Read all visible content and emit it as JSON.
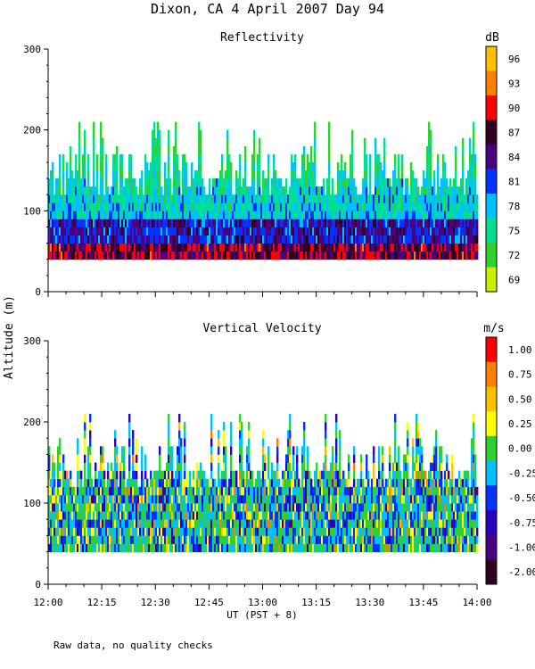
{
  "title": "Dixon, CA   4 April 2007   Day  94",
  "ylabel": "Altitude (m)",
  "xlabel": "UT  (PST + 8)",
  "footnote": "Raw data, no quality checks",
  "x_ticks": [
    "12:00",
    "12:15",
    "12:30",
    "12:45",
    "13:00",
    "13:15",
    "13:30",
    "13:45",
    "14:00"
  ],
  "x_range_minutes": [
    0,
    120
  ],
  "chart_data": [
    {
      "type": "heatmap",
      "title": "Reflectivity",
      "unit": "dB",
      "ylim": [
        0,
        300
      ],
      "y_ticks": [
        "0",
        "100",
        "200",
        "300"
      ],
      "data_altitude_range_m": [
        40,
        220
      ],
      "colorbar": {
        "labels": [
          "96",
          "93",
          "90",
          "87",
          "84",
          "81",
          "78",
          "75",
          "72",
          "69"
        ],
        "colors": [
          "#ffc000",
          "#ff8000",
          "#ff0000",
          "#300020",
          "#4b0082",
          "#0033ff",
          "#00c0ff",
          "#00e090",
          "#30d030",
          "#c8f000"
        ]
      }
    },
    {
      "type": "heatmap",
      "title": "Vertical Velocity",
      "unit": "m/s",
      "ylim": [
        0,
        300
      ],
      "y_ticks": [
        "0",
        "100",
        "200",
        "300"
      ],
      "data_altitude_range_m": [
        40,
        220
      ],
      "colorbar": {
        "labels": [
          "1.00",
          "0.75",
          "0.50",
          "0.25",
          "0.00",
          "-0.25",
          "-0.50",
          "-0.75",
          "-1.00",
          "-2.00"
        ],
        "colors": [
          "#ff0000",
          "#ff8000",
          "#ffc000",
          "#ffff00",
          "#30d030",
          "#00c0ff",
          "#0033ff",
          "#2800c0",
          "#4b0082",
          "#300020"
        ]
      }
    }
  ]
}
